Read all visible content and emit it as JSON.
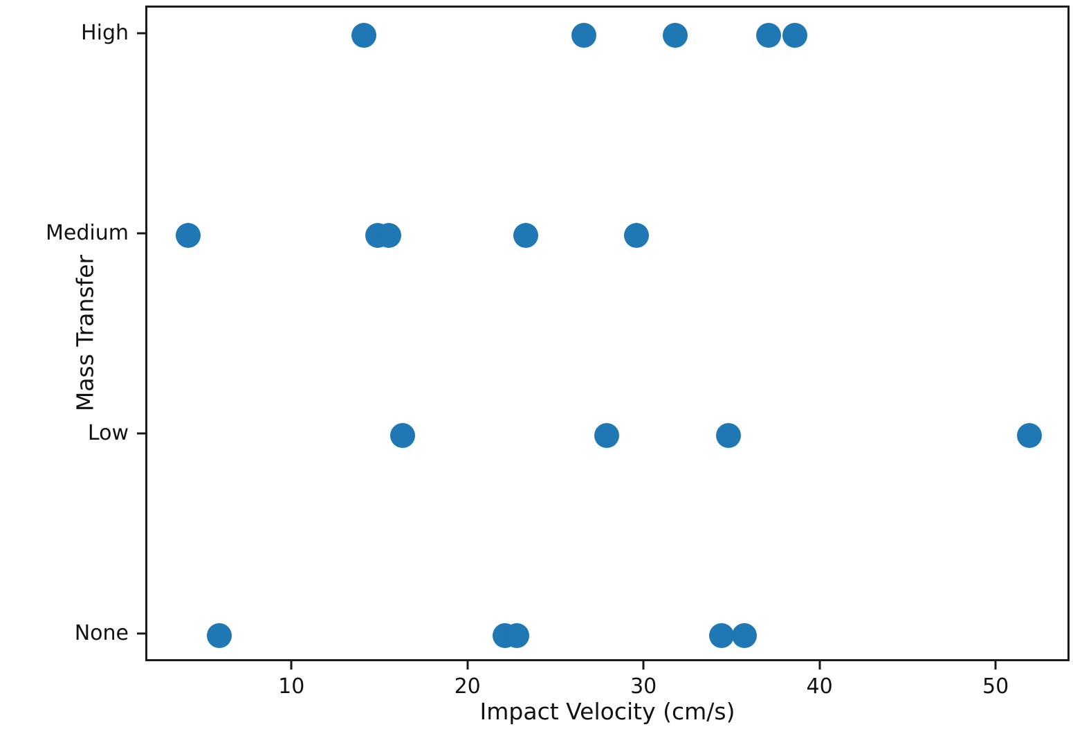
{
  "figure": {
    "background": "#ffffff",
    "spine_color": "#1a1a1a"
  },
  "chart_data": {
    "type": "scatter",
    "title": "",
    "xlabel": "Impact Velocity (cm/s)",
    "ylabel": "Mass Transfer",
    "y_categories": [
      "None",
      "Low",
      "Medium",
      "High"
    ],
    "x_ticks": [
      10,
      20,
      30,
      40,
      50
    ],
    "xlim": [
      1.7,
      54.2
    ],
    "ylim_index": [
      -0.14,
      3.14
    ],
    "grid": false,
    "legend": "none",
    "point_color": "#1f77b4",
    "series": [
      {
        "name": "High",
        "x": [
          14.0,
          26.5,
          31.7,
          37.0,
          38.5
        ]
      },
      {
        "name": "Medium",
        "x": [
          4.0,
          14.8,
          15.4,
          23.2,
          29.5
        ]
      },
      {
        "name": "Low",
        "x": [
          16.2,
          27.8,
          34.7,
          51.8
        ]
      },
      {
        "name": "None",
        "x": [
          5.8,
          22.0,
          22.7,
          34.3,
          35.6
        ]
      }
    ]
  }
}
